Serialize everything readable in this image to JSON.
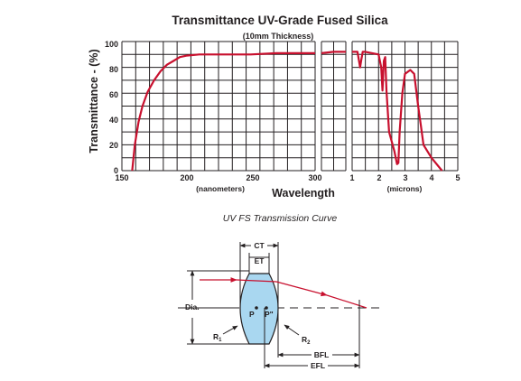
{
  "chart": {
    "title": "Transmittance UV-Grade Fused Silica",
    "subtitle": "(10mm Thickness)",
    "ylabel": "Transmittance - (%)",
    "xlabel": "Wavelength",
    "unit_nm": "(nanometers)",
    "unit_um": "(microns)",
    "y_ticks": [
      "100",
      "80",
      "60",
      "40",
      "20",
      "0"
    ],
    "nm_ticks": [
      "150",
      "200",
      "250",
      "300"
    ],
    "um_ticks": [
      "1",
      "2",
      "3",
      "4",
      "5"
    ],
    "curve_color": "#c8102e"
  },
  "chart_data": {
    "type": "line",
    "title": "Transmittance UV-Grade Fused Silica",
    "subtitle": "(10mm Thickness)",
    "xlabel": "Wavelength",
    "ylabel": "Transmittance - (%)",
    "ylim": [
      0,
      100
    ],
    "grid": true,
    "panels": [
      {
        "x_unit": "(nanometers)",
        "xlim": [
          150,
          300
        ],
        "x": [
          158,
          160,
          163,
          166,
          170,
          175,
          180,
          185,
          190,
          195,
          200,
          210,
          230,
          250,
          270,
          300
        ],
        "y": [
          0,
          20,
          38,
          50,
          61,
          70,
          77,
          82,
          85,
          88,
          89,
          90,
          90,
          90,
          91,
          91
        ]
      },
      {
        "x_unit": "(nanometers)",
        "x": [
          300,
          350,
          400
        ],
        "y": [
          91,
          92,
          92
        ]
      },
      {
        "x_unit": "(microns)",
        "xlim": [
          1,
          5
        ],
        "x": [
          1.0,
          1.2,
          1.3,
          1.35,
          1.4,
          1.5,
          2.0,
          2.1,
          2.15,
          2.2,
          2.25,
          2.3,
          2.4,
          2.6,
          2.7,
          2.75,
          2.8,
          2.9,
          3.0,
          3.2,
          3.35,
          3.5,
          3.6,
          3.7,
          4.0,
          4.2,
          4.4
        ],
        "y": [
          92,
          92,
          80,
          86,
          92,
          92,
          90,
          80,
          62,
          85,
          88,
          62,
          30,
          15,
          5,
          6,
          30,
          60,
          75,
          78,
          75,
          50,
          35,
          20,
          10,
          5,
          0
        ]
      }
    ]
  },
  "caption": "UV FS Transmission Curve",
  "lens": {
    "ct_label": "CT",
    "et_label": "ET",
    "dia_label": "Dia.",
    "p_label": "P",
    "pp_label": "P\"",
    "r1_label": "R",
    "r1_sub": "1",
    "r2_label": "R",
    "r2_sub": "2",
    "bfl_label": "BFL",
    "efl_label": "EFL",
    "lens_color": "#a9d7f0"
  }
}
